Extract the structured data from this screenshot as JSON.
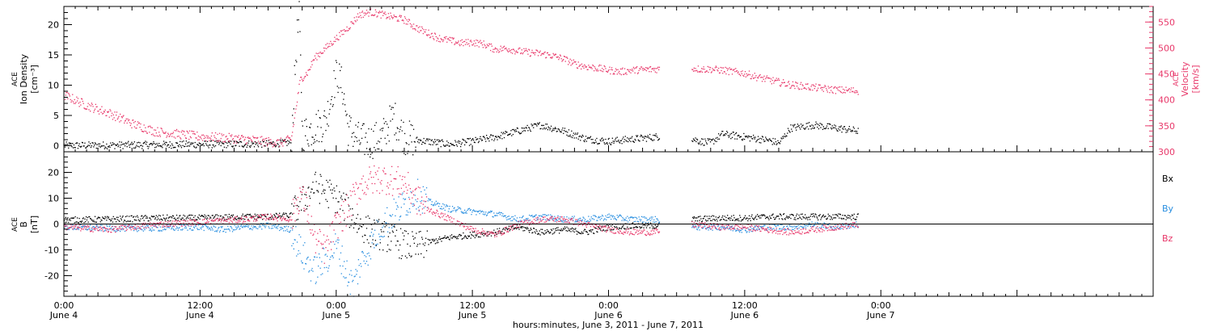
{
  "colors": {
    "black": "#000000",
    "pink": "#e8386a",
    "blue": "#2a8fe0"
  },
  "x_axis": {
    "label": "hours:minutes, June  3, 2011 - June  7, 2011",
    "range_hours": [
      0,
      96
    ],
    "ticks": [
      {
        "h": 0,
        "time": "0:00",
        "date": "June 4"
      },
      {
        "h": 12,
        "time": "12:00",
        "date": "June 4"
      },
      {
        "h": 24,
        "time": "0:00",
        "date": "June 5"
      },
      {
        "h": 36,
        "time": "12:00",
        "date": "June 5"
      },
      {
        "h": 48,
        "time": "0:00",
        "date": "June 6"
      },
      {
        "h": 60,
        "time": "12:00",
        "date": "June 6"
      },
      {
        "h": 72,
        "time": "0:00",
        "date": "June 7"
      }
    ]
  },
  "chart_data": [
    {
      "type": "scatter",
      "panel": "top",
      "ylabel_left": [
        "ACE",
        "Ion Density",
        "[cm⁻³]"
      ],
      "ylabel_right": [
        "ACE",
        "Velocity",
        "[km/s]"
      ],
      "ylim_left": [
        -1,
        23
      ],
      "yticks_left": [
        0,
        5,
        10,
        15,
        20
      ],
      "ylim_right": [
        300,
        580
      ],
      "yticks_right": [
        300,
        350,
        400,
        450,
        500,
        550
      ],
      "series": [
        {
          "axis": "left",
          "color": "#000000",
          "points": [
            [
              0,
              0.1
            ],
            [
              6,
              0.2
            ],
            [
              12,
              0.3
            ],
            [
              18,
              0.4
            ],
            [
              20,
              0.6
            ],
            [
              20.5,
              18
            ],
            [
              20.7,
              21
            ],
            [
              21,
              2
            ],
            [
              22,
              3
            ],
            [
              23,
              4
            ],
            [
              24,
              12
            ],
            [
              24.5,
              10
            ],
            [
              25,
              3
            ],
            [
              26,
              1
            ],
            [
              27,
              0.8
            ],
            [
              28,
              1.5
            ],
            [
              29,
              5
            ],
            [
              30,
              1.5
            ],
            [
              31,
              1
            ],
            [
              32,
              0.8
            ],
            [
              34,
              0.3
            ],
            [
              36,
              0.8
            ],
            [
              38,
              1.5
            ],
            [
              40,
              2.5
            ],
            [
              42,
              3.5
            ],
            [
              44,
              2.5
            ],
            [
              46,
              1.2
            ],
            [
              48,
              0.8
            ],
            [
              52,
              1.5
            ],
            [
              54,
              2
            ],
            [
              55,
              1.5
            ],
            [
              56,
              0.8
            ],
            [
              57,
              0.6
            ],
            [
              58,
              2
            ],
            [
              60,
              1.5
            ],
            [
              62,
              1
            ],
            [
              63,
              0.5
            ],
            [
              64,
              3
            ],
            [
              66,
              3.5
            ],
            [
              68,
              3
            ],
            [
              70,
              2.5
            ]
          ],
          "gaps": [
            [
              52.5,
              55.3
            ]
          ]
        },
        {
          "axis": "right",
          "color": "#e8386a",
          "points": [
            [
              0,
              410
            ],
            [
              2,
              390
            ],
            [
              4,
              375
            ],
            [
              6,
              355
            ],
            [
              8,
              340
            ],
            [
              10,
              335
            ],
            [
              12,
              330
            ],
            [
              14,
              328
            ],
            [
              16,
              325
            ],
            [
              18,
              320
            ],
            [
              19,
              318
            ],
            [
              20,
              325
            ],
            [
              20.8,
              440
            ],
            [
              21.5,
              455
            ],
            [
              22,
              480
            ],
            [
              23,
              500
            ],
            [
              24,
              520
            ],
            [
              25,
              540
            ],
            [
              26,
              565
            ],
            [
              27,
              570
            ],
            [
              28,
              565
            ],
            [
              29,
              560
            ],
            [
              30,
              555
            ],
            [
              31,
              540
            ],
            [
              32,
              530
            ],
            [
              33,
              520
            ],
            [
              34,
              515
            ],
            [
              35,
              510
            ],
            [
              36,
              512
            ],
            [
              37,
              508
            ],
            [
              38,
              498
            ],
            [
              39,
              500
            ],
            [
              40,
              495
            ],
            [
              41,
              492
            ],
            [
              42,
              490
            ],
            [
              43,
              486
            ],
            [
              44,
              480
            ],
            [
              45,
              470
            ],
            [
              46,
              465
            ],
            [
              47,
              462
            ],
            [
              48,
              458
            ],
            [
              49,
              455
            ],
            [
              50,
              458
            ],
            [
              52,
              460
            ],
            [
              55.4,
              462
            ],
            [
              56,
              460
            ],
            [
              57,
              460
            ],
            [
              58,
              458
            ],
            [
              59,
              455
            ],
            [
              60,
              452
            ],
            [
              61,
              445
            ],
            [
              62,
              440
            ],
            [
              64,
              430
            ],
            [
              66,
              425
            ],
            [
              68,
              420
            ],
            [
              70,
              418
            ]
          ],
          "gaps": [
            [
              52.5,
              55.3
            ]
          ]
        }
      ]
    },
    {
      "type": "scatter",
      "panel": "bottom",
      "ylabel_left": [
        "ACE",
        "B",
        "[nT]"
      ],
      "ylim": [
        -28,
        28
      ],
      "yticks": [
        -20,
        -10,
        0,
        10,
        20
      ],
      "legend": [
        "Bx",
        "By",
        "Bz"
      ],
      "series": [
        {
          "name": "Bx",
          "color": "#000000",
          "points": [
            [
              0,
              1.8
            ],
            [
              4,
              2
            ],
            [
              8,
              2.5
            ],
            [
              12,
              2.5
            ],
            [
              16,
              3
            ],
            [
              18,
              3
            ],
            [
              20,
              3.5
            ],
            [
              20.8,
              8
            ],
            [
              21.5,
              12
            ],
            [
              22,
              15
            ],
            [
              23,
              13
            ],
            [
              24,
              10
            ],
            [
              25,
              5
            ],
            [
              26,
              0
            ],
            [
              27,
              -3
            ],
            [
              28,
              -4
            ],
            [
              29,
              -6
            ],
            [
              30,
              -8
            ],
            [
              31,
              -9
            ],
            [
              32,
              -7
            ],
            [
              34,
              -5
            ],
            [
              36,
              -4
            ],
            [
              38,
              -3
            ],
            [
              40,
              -1
            ],
            [
              42,
              -3
            ],
            [
              44,
              -2
            ],
            [
              46,
              -3
            ],
            [
              48,
              -1
            ],
            [
              50,
              -0.5
            ],
            [
              52,
              -0.5
            ],
            [
              55.4,
              2
            ],
            [
              58,
              2.5
            ],
            [
              60,
              2.5
            ],
            [
              62,
              3
            ],
            [
              64,
              3
            ],
            [
              66,
              3
            ],
            [
              68,
              3
            ],
            [
              70,
              3
            ]
          ],
          "gaps": [
            [
              52.5,
              55.3
            ]
          ]
        },
        {
          "name": "By",
          "color": "#2a8fe0",
          "points": [
            [
              0,
              -1
            ],
            [
              4,
              -1.5
            ],
            [
              8,
              -1.5
            ],
            [
              12,
              -1
            ],
            [
              14,
              -2
            ],
            [
              16,
              -1
            ],
            [
              18,
              -0.5
            ],
            [
              20,
              -2
            ],
            [
              20.8,
              -10
            ],
            [
              21.5,
              -15
            ],
            [
              22,
              -18
            ],
            [
              23,
              -14
            ],
            [
              24,
              -8
            ],
            [
              25,
              -20
            ],
            [
              25.5,
              -24
            ],
            [
              26,
              -16
            ],
            [
              27,
              -8
            ],
            [
              28,
              0
            ],
            [
              29,
              4
            ],
            [
              30,
              8
            ],
            [
              31,
              12
            ],
            [
              32,
              9
            ],
            [
              34,
              6
            ],
            [
              36,
              5
            ],
            [
              38,
              4
            ],
            [
              40,
              2
            ],
            [
              42,
              3
            ],
            [
              44,
              2
            ],
            [
              46,
              2
            ],
            [
              48,
              3
            ],
            [
              50,
              2
            ],
            [
              52,
              2
            ],
            [
              55.4,
              -1
            ],
            [
              58,
              -1
            ],
            [
              60,
              -2
            ],
            [
              62,
              -1
            ],
            [
              64,
              -1
            ],
            [
              66,
              0
            ],
            [
              68,
              -1
            ],
            [
              70,
              0
            ]
          ],
          "gaps": [
            [
              52.5,
              55.3
            ]
          ]
        },
        {
          "name": "Bz",
          "color": "#e8386a",
          "points": [
            [
              0,
              -1
            ],
            [
              4,
              -2
            ],
            [
              6,
              -1
            ],
            [
              8,
              0
            ],
            [
              12,
              1
            ],
            [
              16,
              2
            ],
            [
              18,
              3
            ],
            [
              20,
              2
            ],
            [
              20.8,
              12
            ],
            [
              21.5,
              5
            ],
            [
              22,
              -5
            ],
            [
              23,
              -10
            ],
            [
              24,
              0
            ],
            [
              25,
              6
            ],
            [
              26,
              15
            ],
            [
              27,
              17
            ],
            [
              28,
              18
            ],
            [
              29,
              17
            ],
            [
              30,
              16
            ],
            [
              31,
              10
            ],
            [
              32,
              6
            ],
            [
              34,
              2
            ],
            [
              36,
              -2
            ],
            [
              38,
              -4
            ],
            [
              40,
              0
            ],
            [
              42,
              2
            ],
            [
              44,
              2
            ],
            [
              46,
              0
            ],
            [
              48,
              -2
            ],
            [
              50,
              -3
            ],
            [
              52,
              -3
            ],
            [
              55.4,
              0
            ],
            [
              58,
              -1
            ],
            [
              60,
              -1
            ],
            [
              62,
              -2
            ],
            [
              64,
              -3
            ],
            [
              66,
              -2
            ],
            [
              68,
              -1
            ],
            [
              70,
              0
            ]
          ],
          "gaps": [
            [
              52.5,
              55.3
            ]
          ]
        }
      ]
    }
  ]
}
